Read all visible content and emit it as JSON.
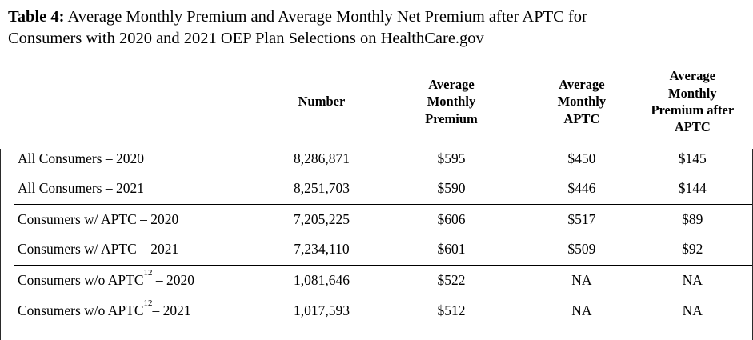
{
  "title": {
    "label": "Table 4:",
    "line1": " Average Monthly Premium and Average Monthly Net Premium after APTC for",
    "line2": "Consumers with 2020 and 2021 OEP Plan Selections on HealthCare.gov"
  },
  "table": {
    "headers": {
      "label": "",
      "number": "Number",
      "premium": "Average\nMonthly\nPremium",
      "aptc": "Average\nMonthly\nAPTC",
      "net": "Average\nMonthly\nPremium after\nAPTC"
    },
    "rows": [
      {
        "label": "All Consumers",
        "sup": "",
        "suffix": " – 2020",
        "number": "8,286,871",
        "premium": "$595",
        "aptc": "$450",
        "net": "$145"
      },
      {
        "label": "All Consumers",
        "sup": "",
        "suffix": " – 2021",
        "number": "8,251,703",
        "premium": "$590",
        "aptc": "$446",
        "net": "$144"
      },
      {
        "label": "Consumers w/ APTC",
        "sup": "",
        "suffix": " – 2020",
        "number": "7,205,225",
        "premium": "$606",
        "aptc": "$517",
        "net": "$89"
      },
      {
        "label": "Consumers w/ APTC",
        "sup": "",
        "suffix": " – 2021",
        "number": "7,234,110",
        "premium": "$601",
        "aptc": "$509",
        "net": "$92"
      },
      {
        "label": "Consumers w/o APTC",
        "sup": "12",
        "suffix": " – 2020",
        "number": "1,081,646",
        "premium": "$522",
        "aptc": "NA",
        "net": "NA"
      },
      {
        "label": "Consumers w/o APTC",
        "sup": "12",
        "suffix": "– 2021",
        "number": "1,017,593",
        "premium": "$512",
        "aptc": "NA",
        "net": "NA"
      }
    ]
  },
  "colors": {
    "text": "#000000",
    "background": "#ffffff",
    "rule": "#000000"
  }
}
